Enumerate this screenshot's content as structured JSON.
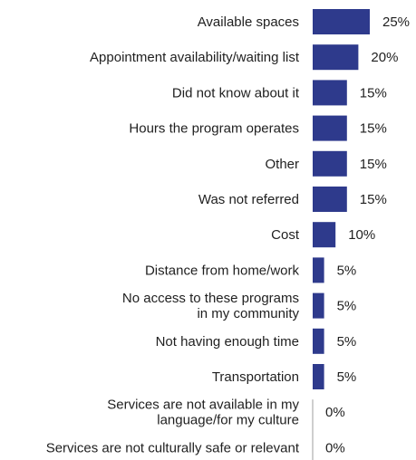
{
  "chart_data": {
    "type": "bar",
    "orientation": "horizontal",
    "categories": [
      "Available spaces",
      "Appointment availability/waiting list",
      "Did not know about it",
      "Hours the program operates",
      "Other",
      "Was not referred",
      "Cost",
      "Distance from home/work",
      "No access to these programs in my community",
      "Not having enough time",
      "Transportation",
      "Services are not available in my language/for my culture",
      "Services are not culturally safe or relevant"
    ],
    "category_lines": [
      [
        "Available spaces"
      ],
      [
        "Appointment availability/waiting list"
      ],
      [
        "Did not know about it"
      ],
      [
        "Hours the program operates"
      ],
      [
        "Other"
      ],
      [
        "Was not referred"
      ],
      [
        "Cost"
      ],
      [
        "Distance from home/work"
      ],
      [
        "No access to these programs",
        "in my community"
      ],
      [
        "Not having enough time"
      ],
      [
        "Transportation"
      ],
      [
        "Services are not available in my",
        "language/for my culture"
      ],
      [
        "Services are not culturally safe or relevant"
      ]
    ],
    "values": [
      25,
      20,
      15,
      15,
      15,
      15,
      10,
      5,
      5,
      5,
      5,
      0,
      0
    ],
    "value_labels": [
      "25%",
      "20%",
      "15%",
      "15%",
      "15%",
      "15%",
      "10%",
      "5%",
      "5%",
      "5%",
      "5%",
      "0%",
      "0%"
    ],
    "title": "",
    "xlabel": "",
    "ylabel": "",
    "xlim": [
      0,
      25
    ],
    "grid": false,
    "legend": "none",
    "bar_color": "#2e3a8c",
    "axis_color": "#bdbdbd"
  }
}
